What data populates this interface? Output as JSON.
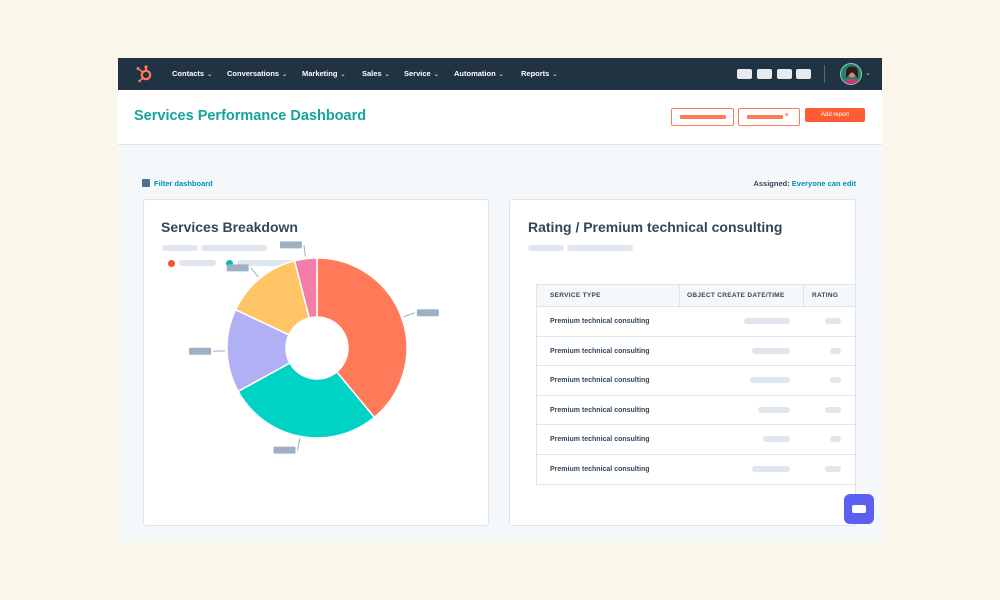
{
  "nav": {
    "items": [
      {
        "label": "Contacts",
        "chevron": "⌄"
      },
      {
        "label": "Conversations",
        "chevron": "⌄"
      },
      {
        "label": "Marketing",
        "chevron": "⌄"
      },
      {
        "label": "Sales",
        "chevron": "⌄"
      },
      {
        "label": "Service",
        "chevron": "⌄"
      },
      {
        "label": "Automation",
        "chevron": "⌄"
      },
      {
        "label": "Reports",
        "chevron": "⌄"
      }
    ],
    "logo_icon": "sprocket-logo-icon",
    "logo_color": "#ff7a59",
    "bar_color": "#213343"
  },
  "header": {
    "title": "Services Performance Dashboard",
    "add_report_label": "Add report",
    "accent": "#ff5c35"
  },
  "filter": {
    "label": "Filter dashboard",
    "assigned_label": "Assigned:",
    "assigned_value": "Everyone can edit"
  },
  "services_card": {
    "title": "Services Breakdown",
    "legend_colors": [
      "#f2552c",
      "#00bda5"
    ]
  },
  "chart_data": {
    "type": "pie",
    "variant": "donut",
    "categories": [
      "",
      "",
      "",
      "",
      ""
    ],
    "values": [
      39,
      28,
      15,
      14,
      4
    ],
    "colors": [
      "#ff7a59",
      "#00d2c4",
      "#b2b0f5",
      "#ffc564",
      "#f57ca6"
    ],
    "title": "Services Breakdown",
    "legend": "top-left"
  },
  "rating_card": {
    "title": "Rating / Premium technical consulting",
    "columns": [
      "SERVICE TYPE",
      "OBJECT CREATE DATE/TIME",
      "RATING"
    ],
    "rows": [
      "Premium technical consulting",
      "Premium technical consulting",
      "Premium technical consulting",
      "Premium technical consulting",
      "Premium technical consulting",
      "Premium technical consulting"
    ]
  },
  "chat": {
    "icon": "chat-bubble-icon",
    "color": "#5c5ff0"
  }
}
